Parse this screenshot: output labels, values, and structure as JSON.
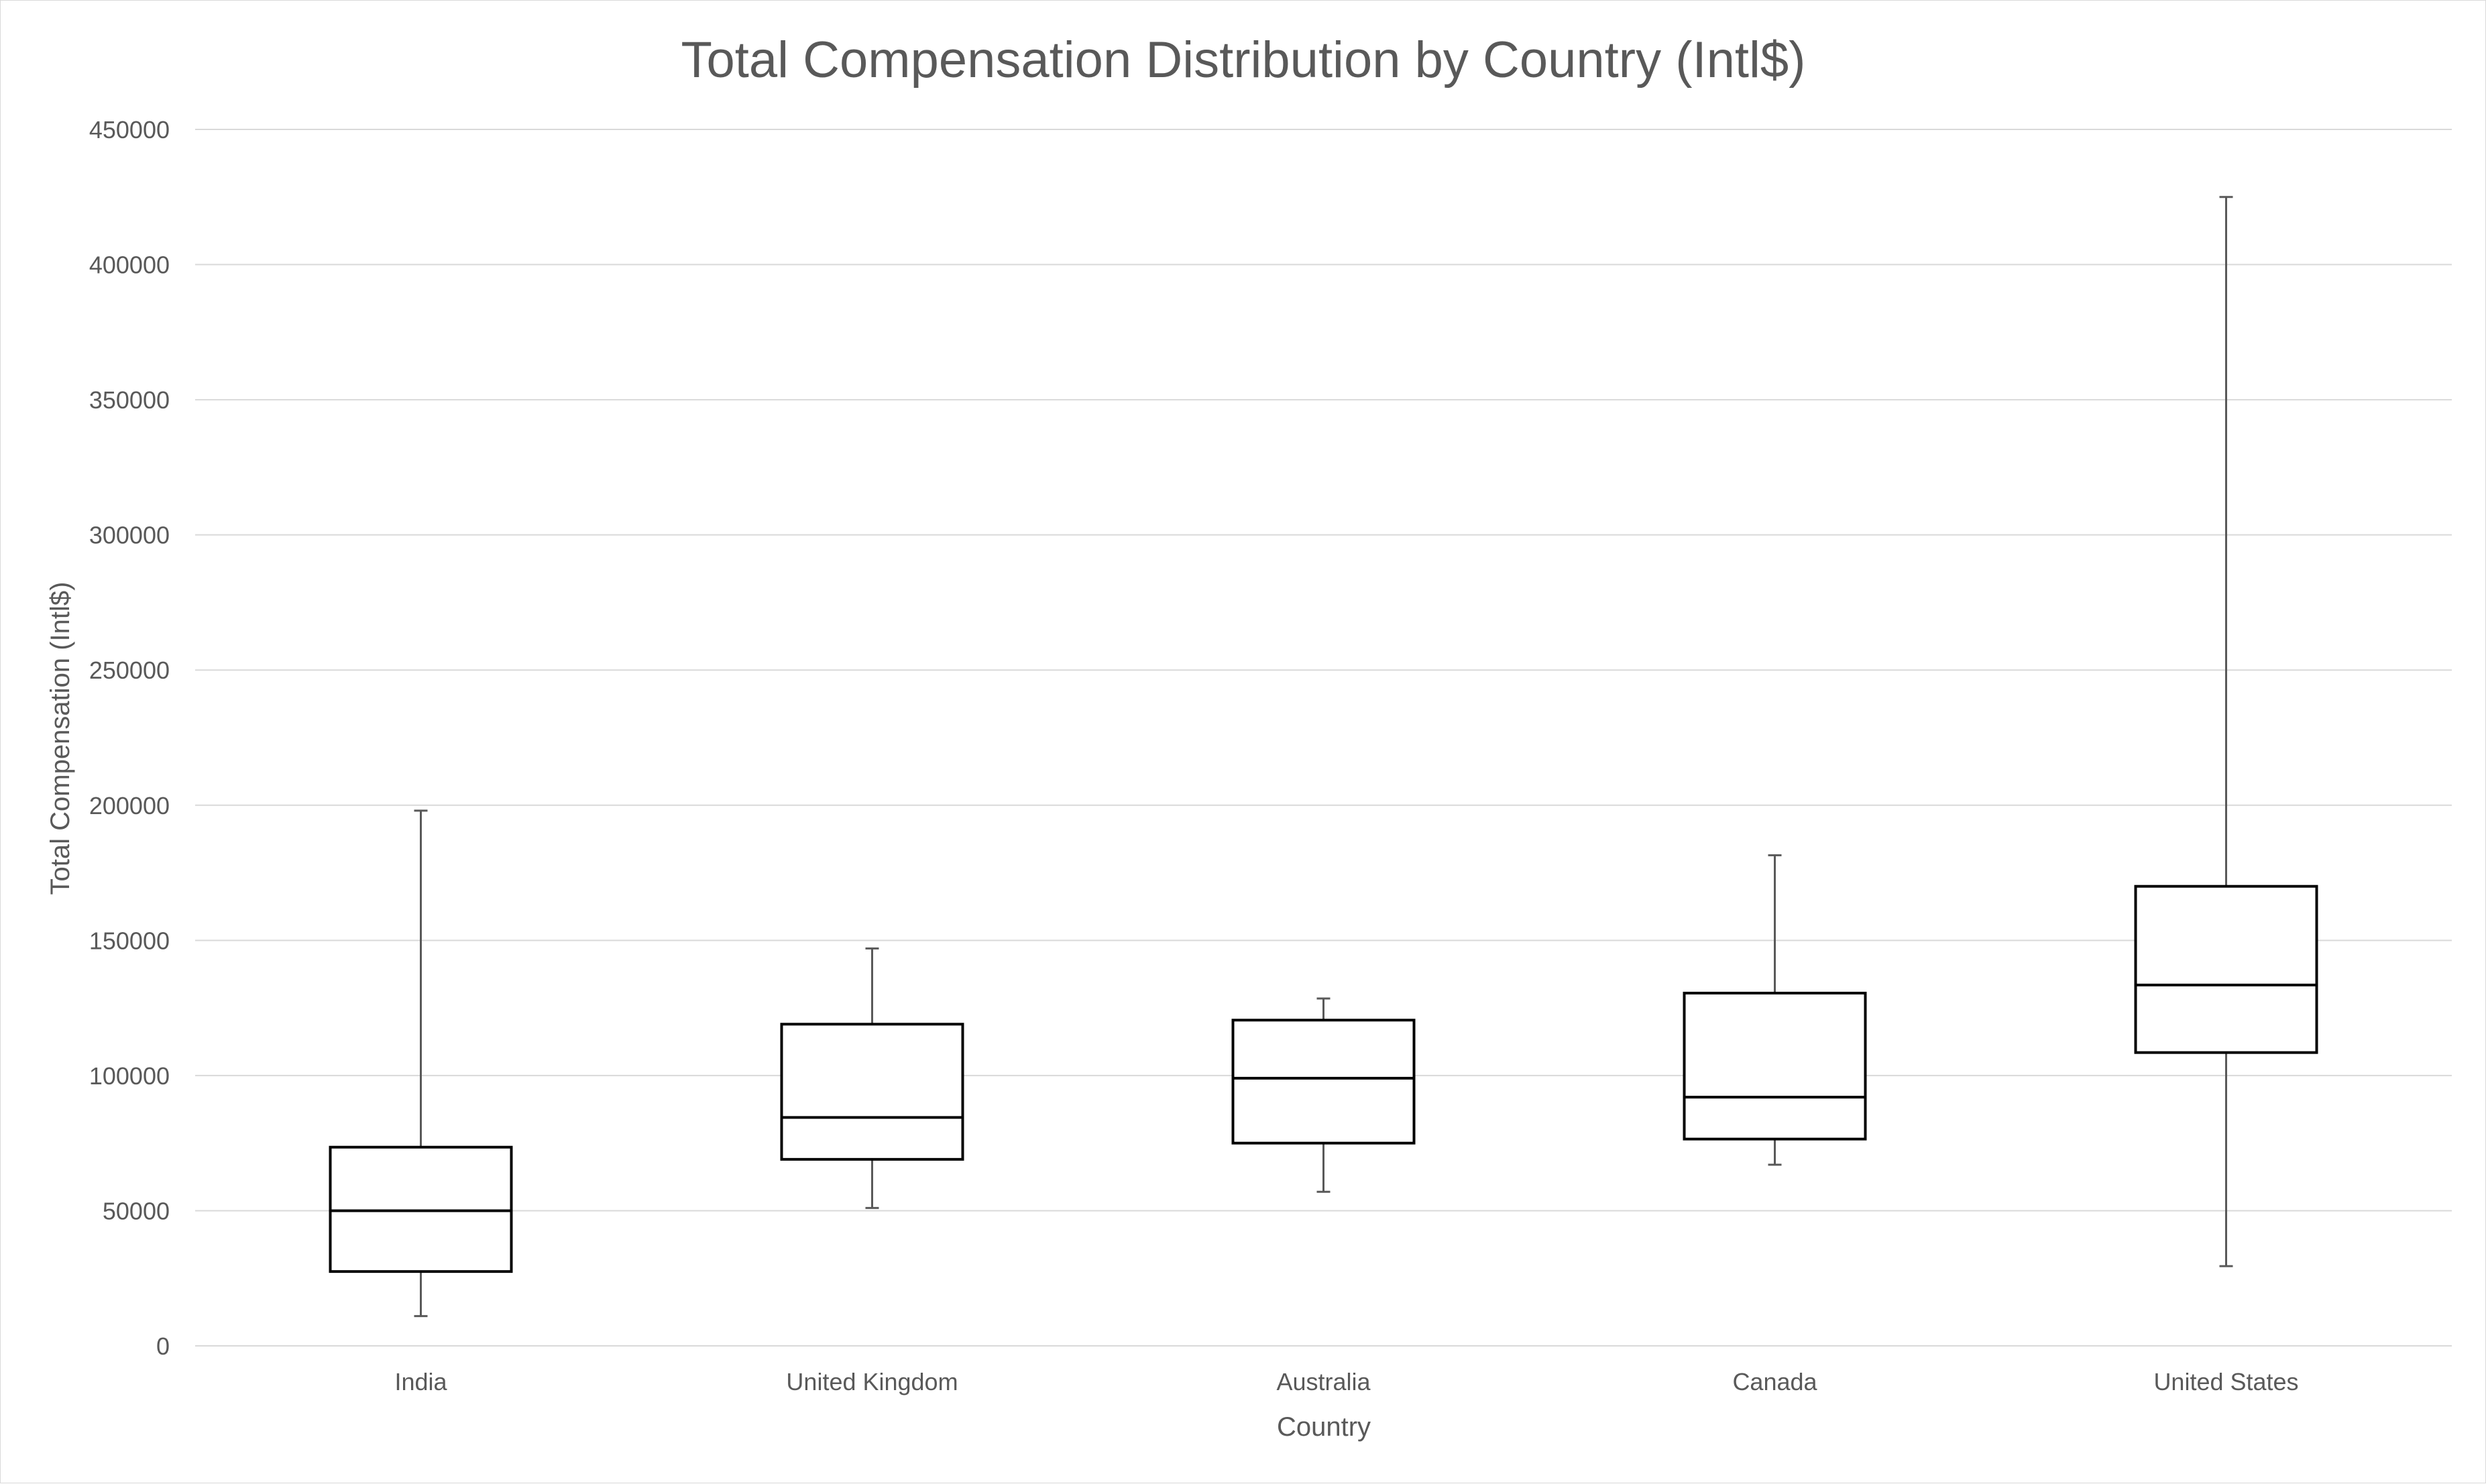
{
  "chart_data": {
    "type": "box",
    "title": "Total Compensation Distribution by Country (Intl$)",
    "xlabel": "Country",
    "ylabel": "Total Compensation (Intl$)",
    "ylim": [
      0,
      450000
    ],
    "yticks": [
      0,
      50000,
      100000,
      150000,
      200000,
      250000,
      300000,
      350000,
      400000,
      450000
    ],
    "grid": true,
    "categories": [
      "India",
      "United Kingdom",
      "Australia",
      "Canada",
      "United States"
    ],
    "boxes": [
      {
        "category": "India",
        "min": 11000,
        "q1": 27500,
        "median": 50000,
        "q3": 73500,
        "max": 198000
      },
      {
        "category": "United Kingdom",
        "min": 51000,
        "q1": 69000,
        "median": 84500,
        "q3": 119000,
        "max": 147000
      },
      {
        "category": "Australia",
        "min": 57000,
        "q1": 75000,
        "median": 99000,
        "q3": 120500,
        "max": 128500
      },
      {
        "category": "Canada",
        "min": 67000,
        "q1": 76500,
        "median": 92000,
        "q3": 130500,
        "max": 181500
      },
      {
        "category": "United States",
        "min": 29500,
        "q1": 108500,
        "median": 133500,
        "q3": 170000,
        "max": 425000
      }
    ]
  }
}
